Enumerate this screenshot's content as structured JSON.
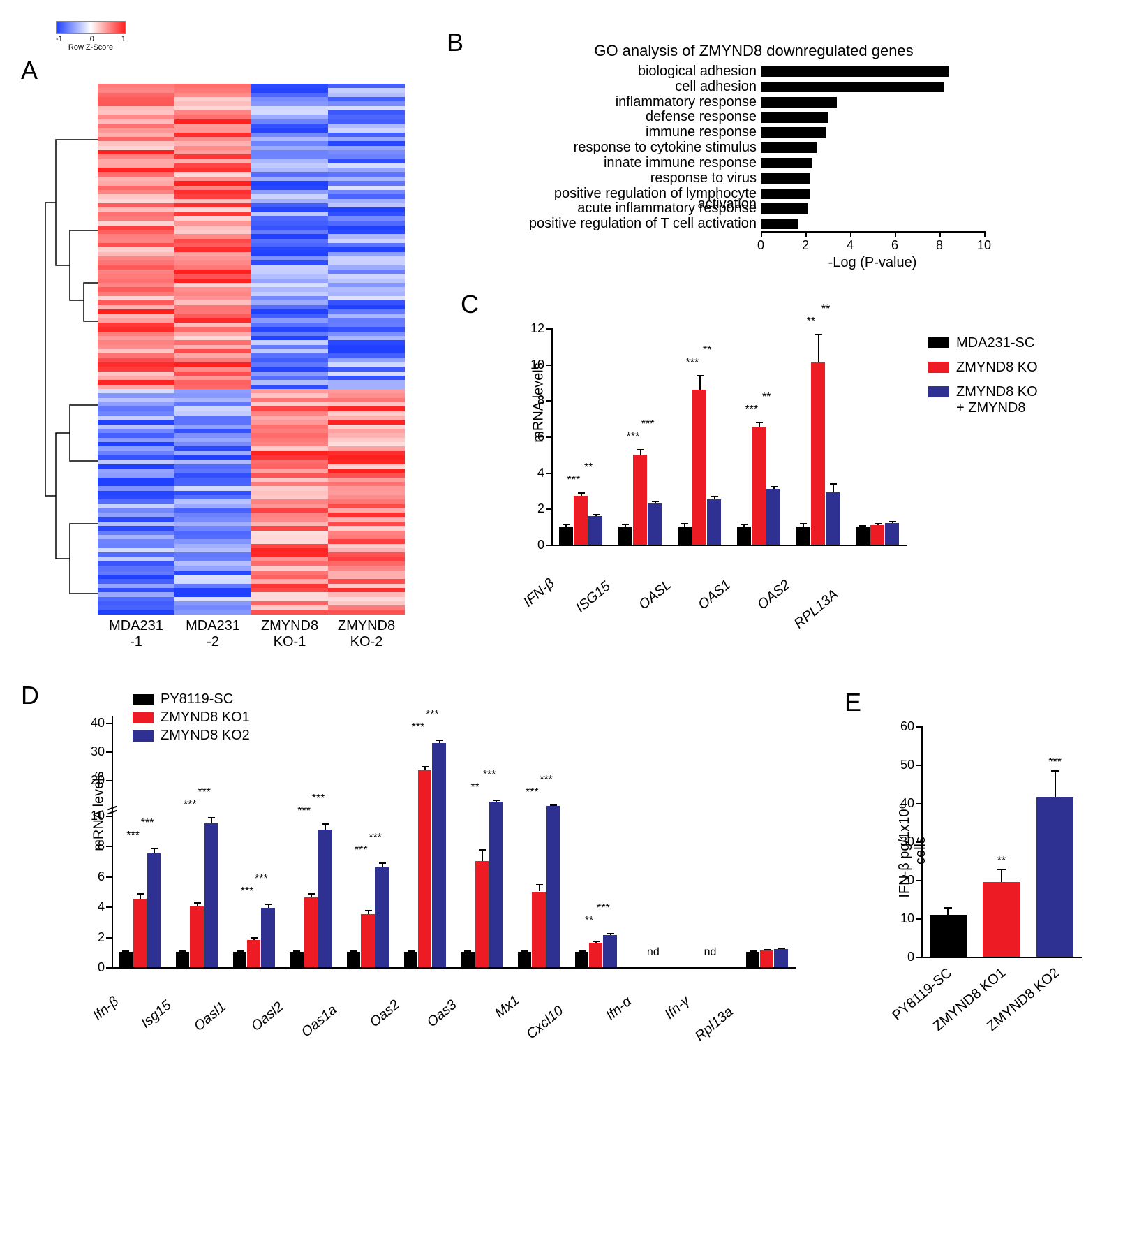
{
  "colors": {
    "black": "#000000",
    "red": "#ed1c24",
    "blue": "#2e3192",
    "heat_blue": "#2040ff",
    "heat_red": "#ff2020",
    "heat_white": "#ffffff"
  },
  "panelA": {
    "label": "A",
    "colorbar": {
      "label": "Row Z-Score",
      "ticks": [
        "-1",
        "0",
        "1"
      ]
    },
    "columns": [
      "MDA231\n-1",
      "MDA231\n-2",
      "ZMYND8\nKO-1",
      "ZMYND8\nKO-2"
    ],
    "rows": 120,
    "zscores_seed": 7
  },
  "panelB": {
    "label": "B",
    "title": "GO analysis of ZMYND8 downregulated genes",
    "xlabel": "-Log (P-value)",
    "xlim": [
      0,
      10
    ],
    "xticks": [
      0,
      2,
      4,
      6,
      8,
      10
    ],
    "bar_color": "#000000",
    "categories": [
      "biological adhesion",
      "cell adhesion",
      "inflammatory response",
      "defense response",
      "immune response",
      "response to cytokine stimulus",
      "innate immune response",
      "response to virus",
      "positive regulation of lymphocyte activation",
      "acute inflammatory response",
      "positive regulation of T cell activation"
    ],
    "values": [
      8.4,
      8.2,
      3.4,
      3.0,
      2.9,
      2.5,
      2.3,
      2.2,
      2.2,
      2.1,
      1.7
    ]
  },
  "panelC": {
    "label": "C",
    "ylabel": "mRNA levels",
    "ylim": [
      0,
      12
    ],
    "yticks": [
      0,
      2,
      4,
      6,
      8,
      10,
      12
    ],
    "legend": [
      {
        "label": "MDA231-SC",
        "color": "#000000"
      },
      {
        "label": "ZMYND8 KO",
        "color": "#ed1c24"
      },
      {
        "label": "ZMYND8 KO\n+ ZMYND8",
        "color": "#2e3192"
      }
    ],
    "categories": [
      "IFN-β",
      "ISG15",
      "OASL",
      "OAS1",
      "OAS2",
      "RPL13A"
    ],
    "series": [
      {
        "color": "#000000",
        "values": [
          1.0,
          1.0,
          1.0,
          1.0,
          1.0,
          1.0
        ],
        "err": [
          0.15,
          0.15,
          0.2,
          0.15,
          0.2,
          0.1
        ]
      },
      {
        "color": "#ed1c24",
        "values": [
          2.7,
          5.0,
          8.6,
          6.5,
          10.1,
          1.1
        ],
        "err": [
          0.2,
          0.3,
          0.8,
          0.3,
          1.6,
          0.1
        ]
      },
      {
        "color": "#2e3192",
        "values": [
          1.6,
          2.3,
          2.5,
          3.1,
          2.9,
          1.2
        ],
        "err": [
          0.12,
          0.15,
          0.2,
          0.15,
          0.5,
          0.1
        ]
      }
    ],
    "sig": [
      [
        "***",
        "**"
      ],
      [
        "***",
        "***"
      ],
      [
        "***",
        "**"
      ],
      [
        "***",
        "**"
      ],
      [
        "**",
        "**"
      ],
      [
        "",
        ""
      ]
    ]
  },
  "panelD": {
    "label": "D",
    "ylabel": "mRNA levels",
    "ybreak": 10,
    "ylim_lower": [
      0,
      10
    ],
    "ylim_upper": [
      10,
      40
    ],
    "yticks_lower": [
      0,
      2,
      4,
      6,
      8,
      10
    ],
    "yticks_upper": [
      10,
      20,
      30,
      40
    ],
    "legend": [
      {
        "label": "PY8119-SC",
        "color": "#000000"
      },
      {
        "label": "ZMYND8 KO1",
        "color": "#ed1c24"
      },
      {
        "label": "ZMYND8 KO2",
        "color": "#2e3192"
      }
    ],
    "categories": [
      "Ifn-β",
      "Isg15",
      "Oasl1",
      "Oasl2",
      "Oas1a",
      "Oas2",
      "Oas3",
      "Mx1",
      "Cxcl10",
      "Ifn-α",
      "Ifn-γ",
      "Rpl13a"
    ],
    "series": [
      {
        "color": "#000000",
        "values": [
          1.0,
          1.0,
          1.0,
          1.0,
          1.0,
          1.0,
          1.0,
          1.0,
          1.0,
          0,
          0,
          1.0
        ],
        "err": [
          0.1,
          0.1,
          0.1,
          0.1,
          0.1,
          0.1,
          0.1,
          0.1,
          0.1,
          0,
          0,
          0.1
        ]
      },
      {
        "color": "#ed1c24",
        "values": [
          4.5,
          4.0,
          1.8,
          4.6,
          3.5,
          23.5,
          7.0,
          5.0,
          1.6,
          0,
          0,
          1.1
        ],
        "err": [
          0.4,
          0.3,
          0.2,
          0.3,
          0.3,
          1.4,
          0.8,
          0.5,
          0.15,
          0,
          0,
          0.1
        ]
      },
      {
        "color": "#2e3192",
        "values": [
          7.5,
          9.5,
          3.9,
          9.1,
          6.6,
          33.0,
          12.5,
          11.0,
          2.1,
          0,
          0,
          1.2
        ],
        "err": [
          0.4,
          0.4,
          0.3,
          0.4,
          0.3,
          1.2,
          0.6,
          0.5,
          0.15,
          0,
          0,
          0.1
        ]
      }
    ],
    "sig": [
      [
        "***",
        "***"
      ],
      [
        "***",
        "***"
      ],
      [
        "***",
        "***"
      ],
      [
        "***",
        "***"
      ],
      [
        "***",
        "***"
      ],
      [
        "***",
        "***"
      ],
      [
        "**",
        "***"
      ],
      [
        "***",
        "***"
      ],
      [
        "**",
        "***"
      ],
      [
        "nd",
        ""
      ],
      [
        "nd",
        ""
      ],
      [
        "",
        ""
      ]
    ]
  },
  "panelE": {
    "label": "E",
    "ylabel": "IFN-β pg/1x10⁶ cells",
    "ylim": [
      0,
      60
    ],
    "yticks": [
      0,
      10,
      20,
      30,
      40,
      50,
      60
    ],
    "categories": [
      "PY8119-SC",
      "ZMYND8 KO1",
      "ZMYND8 KO2"
    ],
    "values": [
      11,
      19.5,
      41.5
    ],
    "err": [
      2.0,
      3.5,
      7.0
    ],
    "colors": [
      "#000000",
      "#ed1c24",
      "#2e3192"
    ],
    "sig": [
      "",
      "**",
      "***"
    ]
  }
}
